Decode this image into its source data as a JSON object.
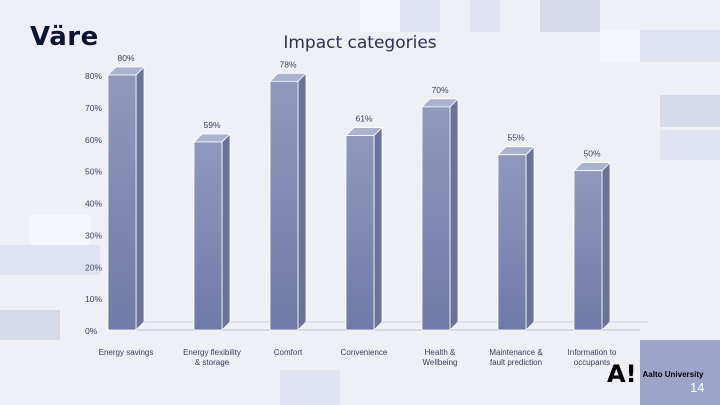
{
  "slide": {
    "logo_text": "Väre",
    "university": "Aalto University",
    "university_mark": "A!",
    "page_number": "14"
  },
  "chart_data": {
    "type": "bar",
    "title": "Impact categories",
    "xlabel": "",
    "ylabel": "",
    "ylim": [
      0,
      80
    ],
    "yticks": [
      0,
      10,
      20,
      30,
      40,
      50,
      60,
      70,
      80
    ],
    "ytick_labels": [
      "0%",
      "10%",
      "20%",
      "30%",
      "40%",
      "50%",
      "60%",
      "70%",
      "80%"
    ],
    "categories": [
      "Energy savings",
      "Energy flexibility & storage",
      "Comfort",
      "Convenience",
      "Health & Wellbeing",
      "Maintenance & fault prediction",
      "Information to occupants"
    ],
    "category_label_lines": [
      [
        "Energy savings"
      ],
      [
        "Energy flexibility",
        "& storage"
      ],
      [
        "Comfort"
      ],
      [
        "Convenience"
      ],
      [
        "Health &",
        "Wellbeing"
      ],
      [
        "Maintenance &",
        "fault prediction"
      ],
      [
        "Information to",
        "occupants"
      ]
    ],
    "values": [
      80,
      59,
      78,
      61,
      70,
      55,
      50
    ],
    "value_labels": [
      "80%",
      "59%",
      "78%",
      "61%",
      "70%",
      "55%",
      "50%"
    ],
    "grid": false,
    "style": "3d",
    "bar_color": "#8a93b8",
    "bar_color_dark": "#6b7399"
  }
}
